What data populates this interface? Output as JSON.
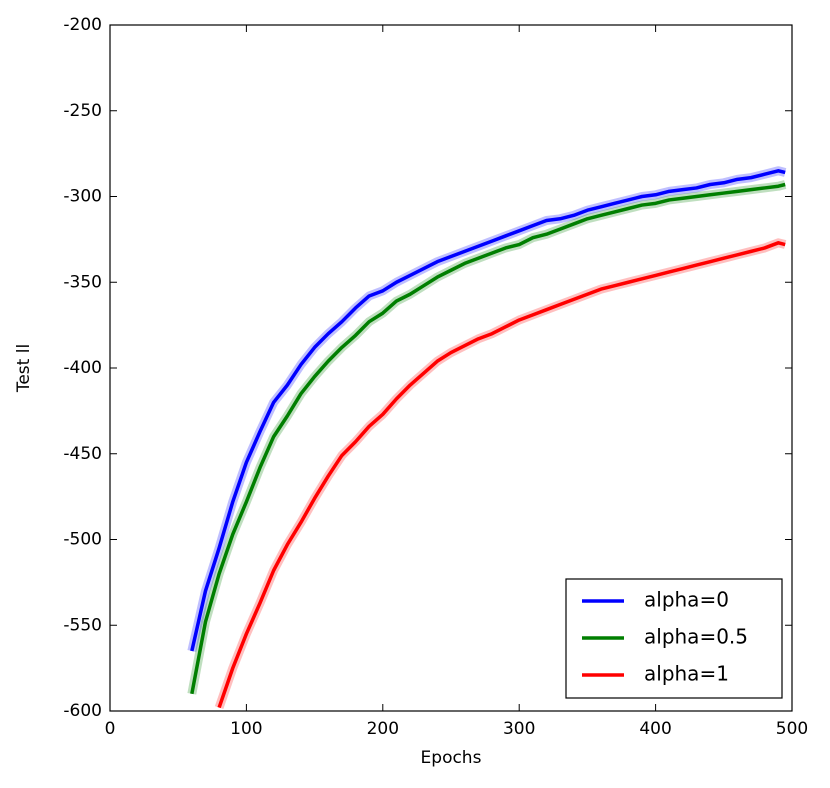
{
  "chart_data": {
    "type": "line",
    "xlabel": "Epochs",
    "ylabel": "Test ll",
    "x": [
      50,
      60,
      70,
      80,
      90,
      100,
      110,
      120,
      130,
      140,
      150,
      160,
      170,
      180,
      190,
      200,
      210,
      220,
      230,
      240,
      250,
      260,
      270,
      280,
      290,
      300,
      310,
      320,
      330,
      340,
      350,
      360,
      370,
      380,
      390,
      400,
      410,
      420,
      430,
      440,
      450,
      460,
      470,
      480,
      490,
      495
    ],
    "series": [
      {
        "name": "alpha=0",
        "color": "#0000ff",
        "values": [
          null,
          -565,
          -530,
          -505,
          -478,
          -455,
          -437,
          -420,
          -410,
          -398,
          -388,
          -380,
          -373,
          -365,
          -358,
          -355,
          -350,
          -346,
          -342,
          -338,
          -335,
          -332,
          -329,
          -326,
          -323,
          -320,
          -317,
          -314,
          -313,
          -311,
          -308,
          -306,
          -304,
          -302,
          -300,
          -299,
          -297,
          -296,
          -295,
          -293,
          -292,
          -290,
          -289,
          -287,
          -285,
          -286
        ]
      },
      {
        "name": "alpha=0.5",
        "color": "#007f00",
        "values": [
          null,
          -590,
          -548,
          -520,
          -497,
          -478,
          -458,
          -440,
          -428,
          -415,
          -405,
          -396,
          -388,
          -381,
          -373,
          -368,
          -361,
          -357,
          -352,
          -347,
          -343,
          -339,
          -336,
          -333,
          -330,
          -328,
          -324,
          -322,
          -319,
          -316,
          -313,
          -311,
          -309,
          -307,
          -305,
          -304,
          -302,
          -301,
          -300,
          -299,
          -298,
          -297,
          -296,
          -295,
          -294,
          -293
        ]
      },
      {
        "name": "alpha=1",
        "color": "#ff0000",
        "values": [
          null,
          null,
          null,
          -598,
          -575,
          -555,
          -537,
          -518,
          -503,
          -490,
          -476,
          -463,
          -451,
          -443,
          -434,
          -427,
          -418,
          -410,
          -403,
          -396,
          -391,
          -387,
          -383,
          -380,
          -376,
          -372,
          -369,
          -366,
          -363,
          -360,
          -357,
          -354,
          -352,
          -350,
          -348,
          -346,
          -344,
          -342,
          -340,
          -338,
          -336,
          -334,
          -332,
          -330,
          -327,
          -328
        ]
      }
    ],
    "xlim": [
      0,
      500
    ],
    "xticks": [
      0,
      100,
      200,
      300,
      400,
      500
    ],
    "ylim": [
      -600,
      -200
    ],
    "yticks": [
      -600,
      -550,
      -500,
      -450,
      -400,
      -350,
      -300,
      -250,
      -200
    ],
    "legend": "lower right"
  }
}
